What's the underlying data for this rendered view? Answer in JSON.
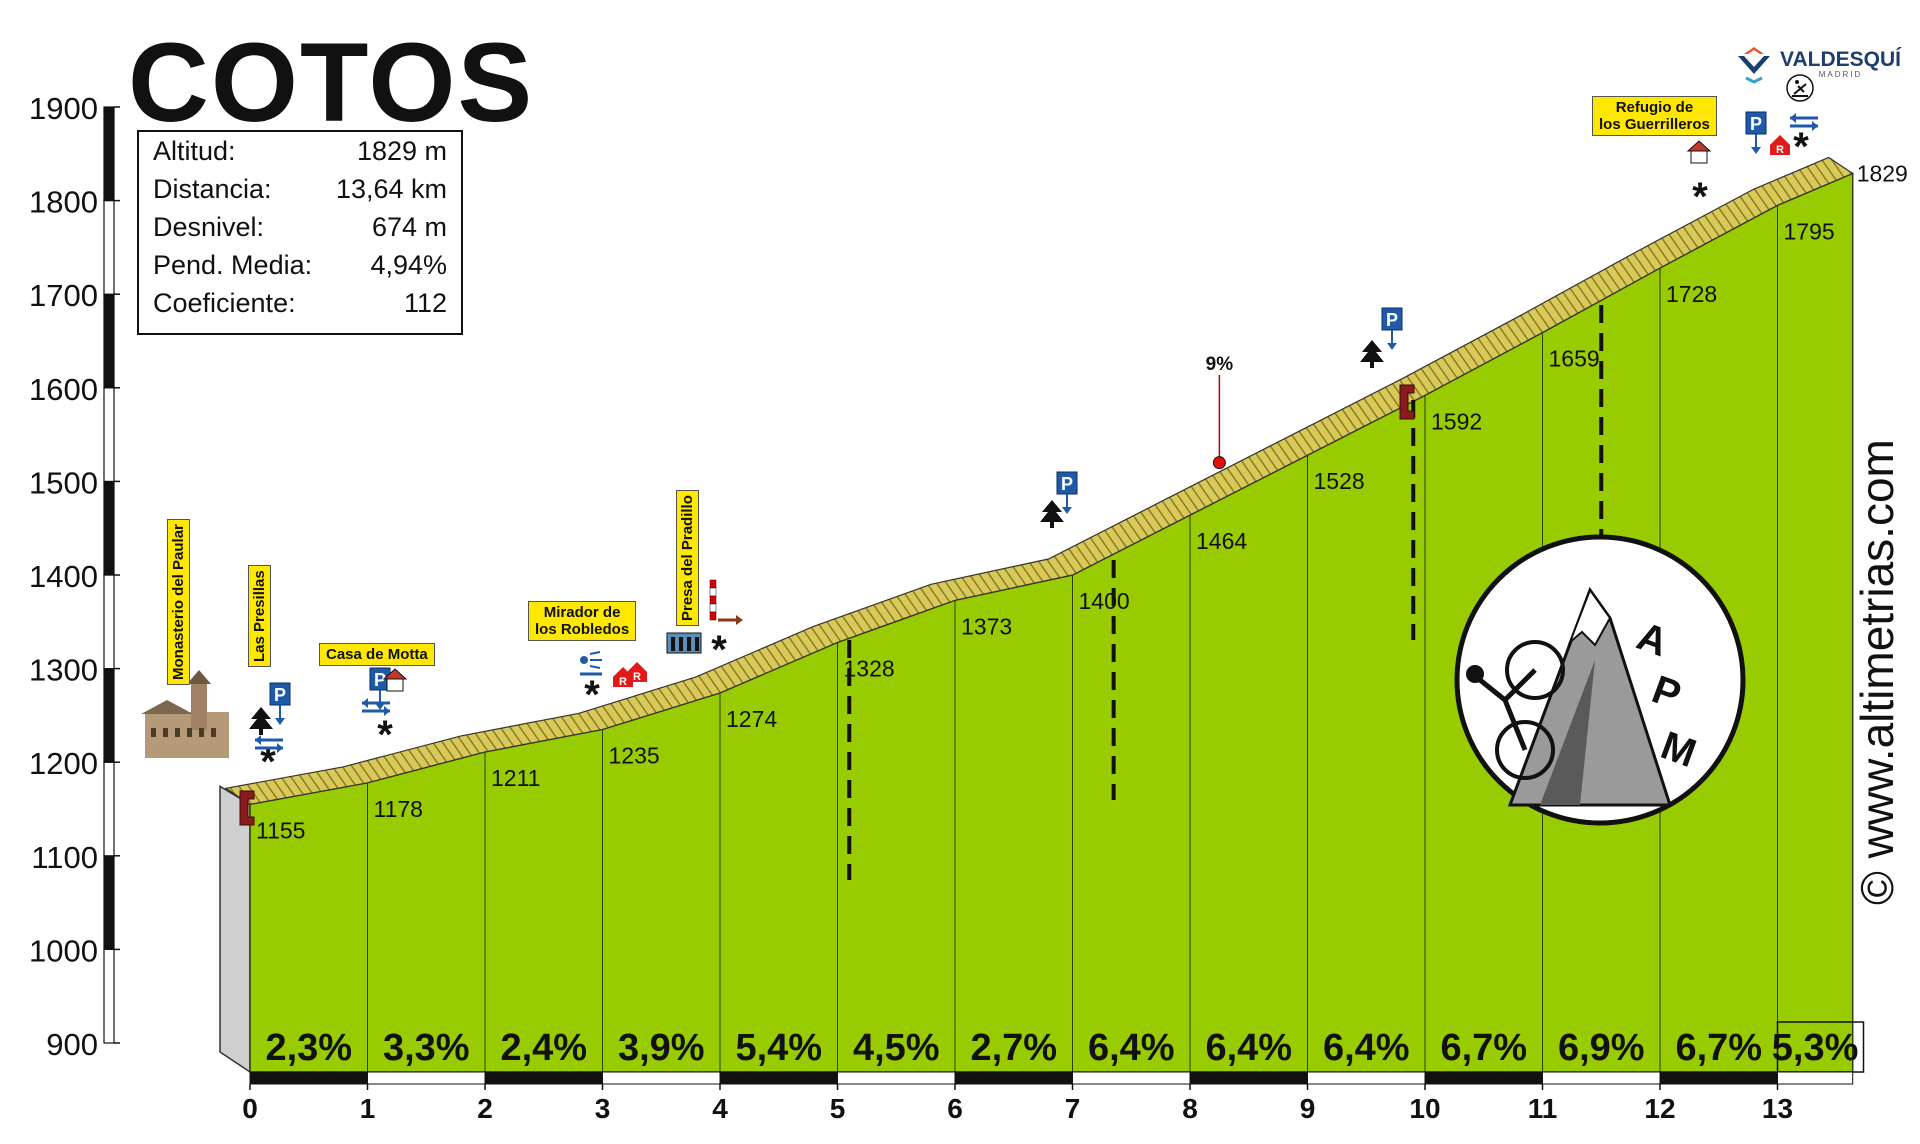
{
  "title": "COTOS",
  "stats": [
    {
      "label": "Altitud:",
      "value": "1829 m"
    },
    {
      "label": "Distancia:",
      "value": "13,64 km"
    },
    {
      "label": "Desnivel:",
      "value": "674 m"
    },
    {
      "label": "Pend. Media:",
      "value": "4,94%"
    },
    {
      "label": "Coeficiente:",
      "value": "112"
    }
  ],
  "watermark": "© www.altimetrias.com",
  "brand": {
    "name": "VALDESQUÍ",
    "sub": "MADRID"
  },
  "landmarks": {
    "monasterio": "Monasterio del Paular",
    "presillas": "Las Presillas",
    "motta": "Casa de Motta",
    "mirador_1": "Mirador de",
    "mirador_2": "los Robledos",
    "presa": "Presa del Pradillo",
    "refugio_1": "Refugio de",
    "refugio_2": "los Guerrilleros"
  },
  "colors": {
    "fill": "#99cc00",
    "road": "#d8c95a",
    "road_dark": "#8a7d1f",
    "side": "#cfcfcf",
    "marker": "#8b1a1a",
    "parking": "#1e5aa8"
  },
  "icons": [
    "monastery-photo",
    "parking-icon",
    "tree-icon",
    "house-icon",
    "restaurant-icon",
    "viewpoint-icon",
    "dam-icon",
    "barrier-icon",
    "skier-icon",
    "apm-logo",
    "valdesqui-logo"
  ],
  "chart_data": {
    "type": "area",
    "xlabel": "",
    "ylabel": "",
    "xlim": [
      0,
      13.64
    ],
    "ylim": [
      900,
      1900
    ],
    "yticks": [
      900,
      1000,
      1100,
      1200,
      1300,
      1400,
      1500,
      1600,
      1700,
      1800,
      1900
    ],
    "xticks": [
      0,
      1,
      2,
      3,
      4,
      5,
      6,
      7,
      8,
      9,
      10,
      11,
      12,
      13
    ],
    "profile": [
      {
        "km": 0,
        "alt": 1155
      },
      {
        "km": 1,
        "alt": 1178
      },
      {
        "km": 2,
        "alt": 1211
      },
      {
        "km": 3,
        "alt": 1235
      },
      {
        "km": 4,
        "alt": 1274
      },
      {
        "km": 5,
        "alt": 1328
      },
      {
        "km": 6,
        "alt": 1373
      },
      {
        "km": 7,
        "alt": 1400
      },
      {
        "km": 8,
        "alt": 1464
      },
      {
        "km": 9,
        "alt": 1528
      },
      {
        "km": 10,
        "alt": 1592
      },
      {
        "km": 11,
        "alt": 1659
      },
      {
        "km": 12,
        "alt": 1728
      },
      {
        "km": 13,
        "alt": 1795
      },
      {
        "km": 13.64,
        "alt": 1829
      }
    ],
    "altitude_labels": [
      "1155",
      "1178",
      "1211",
      "1235",
      "1274",
      "1328",
      "1373",
      "1400",
      "1464",
      "1528",
      "1592",
      "1659",
      "1728",
      "1795",
      "1829"
    ],
    "gradients": [
      "2,3%",
      "3,3%",
      "2,4%",
      "3,9%",
      "5,4%",
      "4,5%",
      "2,7%",
      "6,4%",
      "6,4%",
      "6,4%",
      "6,7%",
      "6,9%",
      "6,7%",
      "5,3%"
    ],
    "max_gradient": {
      "label": "9%",
      "km": 8.25
    }
  }
}
